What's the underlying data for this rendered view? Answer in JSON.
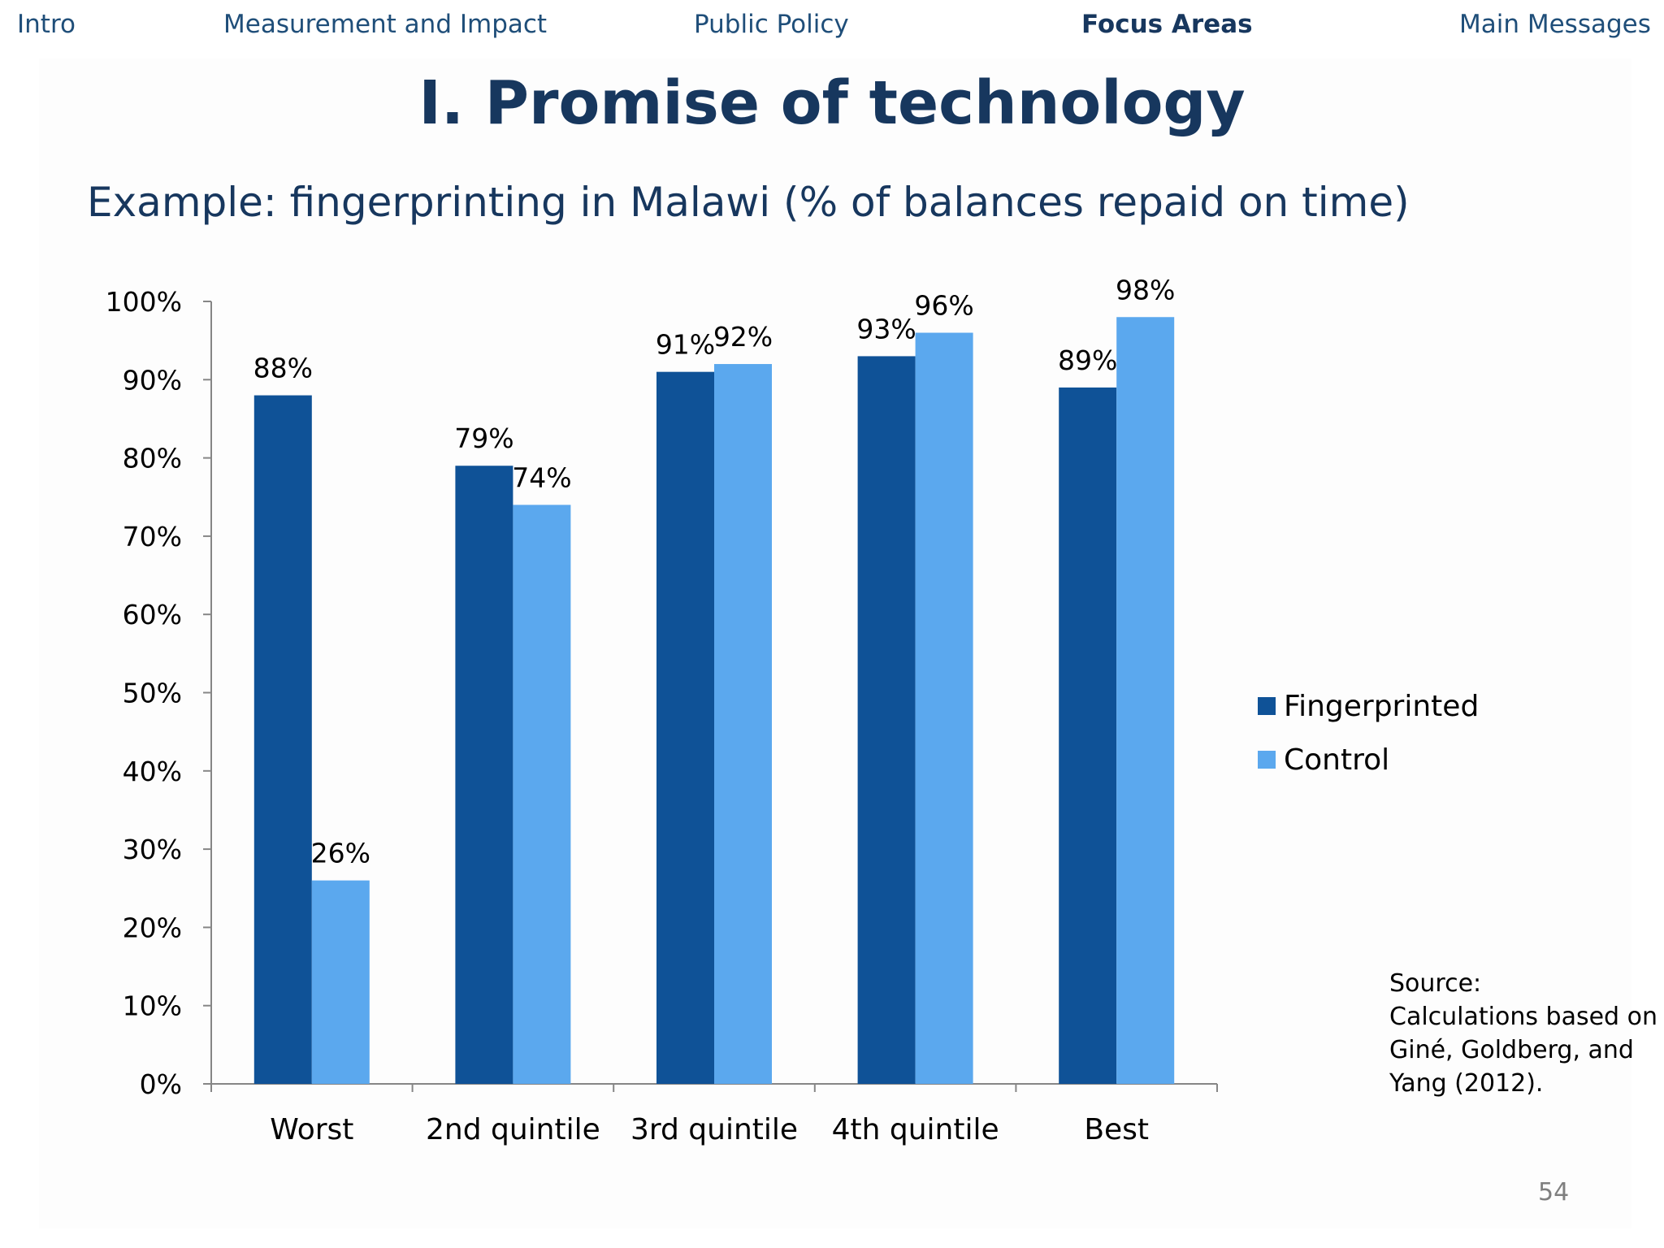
{
  "nav": {
    "items": [
      {
        "label": "Intro",
        "active": false
      },
      {
        "label": "Measurement and Impact",
        "active": false
      },
      {
        "label": "Public Policy",
        "active": false
      },
      {
        "label": "Focus Areas",
        "active": true
      },
      {
        "label": "Main Messages",
        "active": false
      }
    ]
  },
  "slide": {
    "title": "I. Promise of technology",
    "subtitle": "Example: fingerprinting in Malawi (% of balances repaid on time)",
    "source_lines": [
      "Source:",
      "Calculations based on",
      "Giné, Goldberg, and",
      "Yang (2012)."
    ],
    "page_number": "54"
  },
  "chart_data": {
    "type": "bar",
    "categories": [
      "Worst",
      "2nd quintile",
      "3rd quintile",
      "4th quintile",
      "Best"
    ],
    "series": [
      {
        "name": "Fingerprinted",
        "color": "#0f5297",
        "values": [
          88,
          79,
          91,
          93,
          89
        ],
        "labels": [
          "88%",
          "79%",
          "91%",
          "93%",
          "89%"
        ]
      },
      {
        "name": "Control",
        "color": "#5ba8ee",
        "values": [
          26,
          74,
          92,
          96,
          98
        ],
        "labels": [
          "26%",
          "74%",
          "92%",
          "96%",
          "98%"
        ]
      }
    ],
    "ylim": [
      0,
      100
    ],
    "yticks": [
      "0%",
      "10%",
      "20%",
      "30%",
      "40%",
      "50%",
      "60%",
      "70%",
      "80%",
      "90%",
      "100%"
    ],
    "xlabel": "",
    "ylabel": "",
    "grid": false,
    "legend_position": "right"
  }
}
